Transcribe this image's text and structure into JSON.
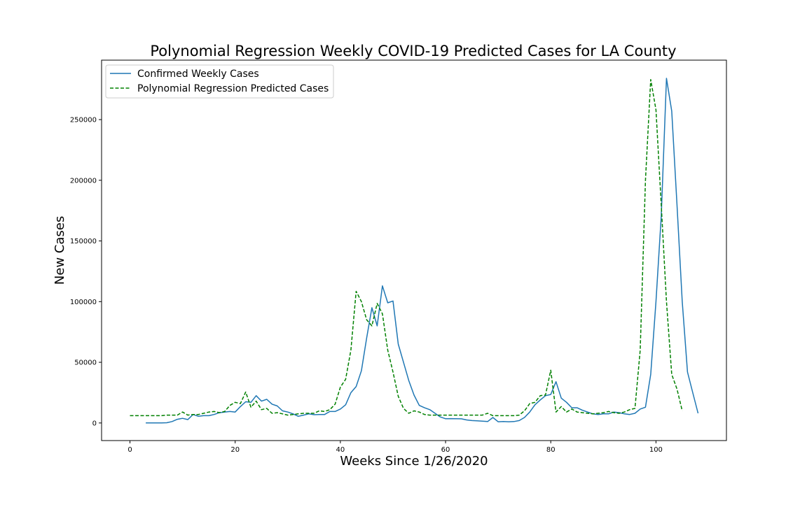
{
  "chart_data": {
    "type": "line",
    "title": "Polynomial Regression Weekly COVID-19 Predicted Cases for LA County",
    "xlabel": "Weeks Since 1/26/2020",
    "ylabel": "New Cases",
    "xlim": [
      -5.4,
      113.4
    ],
    "ylim": [
      -14500,
      299000
    ],
    "xticks": [
      0,
      20,
      40,
      60,
      80,
      100
    ],
    "xtick_labels": [
      "0",
      "20",
      "40",
      "60",
      "80",
      "100"
    ],
    "yticks": [
      0,
      50000,
      100000,
      150000,
      200000,
      250000
    ],
    "ytick_labels": [
      "0",
      "50000",
      "100000",
      "150000",
      "200000",
      "250000"
    ],
    "grid": false,
    "legend_position": "top-left",
    "series": [
      {
        "name": "Confirmed Weekly Cases",
        "color": "#1f77b4",
        "style": "solid",
        "x": [
          3,
          4,
          5,
          6,
          7,
          8,
          9,
          10,
          11,
          12,
          13,
          14,
          15,
          16,
          17,
          18,
          19,
          20,
          21,
          22,
          23,
          24,
          25,
          26,
          27,
          28,
          29,
          30,
          31,
          32,
          33,
          34,
          35,
          36,
          37,
          38,
          39,
          40,
          41,
          42,
          43,
          44,
          45,
          46,
          47,
          48,
          49,
          50,
          51,
          52,
          53,
          54,
          55,
          56,
          57,
          58,
          59,
          60,
          61,
          62,
          63,
          64,
          65,
          66,
          67,
          68,
          69,
          70,
          71,
          72,
          73,
          74,
          75,
          76,
          77,
          78,
          79,
          80,
          81,
          82,
          83,
          84,
          85,
          86,
          87,
          88,
          89,
          90,
          91,
          92,
          93,
          94,
          95,
          96,
          97,
          98,
          99,
          100,
          101,
          102,
          103,
          104,
          105,
          106,
          107,
          108
        ],
        "y": [
          0,
          0,
          0,
          0,
          200,
          1200,
          3000,
          3800,
          2800,
          7000,
          5500,
          6000,
          6000,
          7000,
          8500,
          9000,
          9500,
          9000,
          13500,
          17500,
          17000,
          22500,
          18000,
          19500,
          15500,
          14000,
          10000,
          9000,
          7500,
          5500,
          6500,
          7500,
          6800,
          7000,
          7000,
          9500,
          9500,
          11500,
          15000,
          25000,
          30000,
          43000,
          70000,
          95000,
          80000,
          113000,
          99000,
          100500,
          65000,
          50000,
          35000,
          23000,
          14500,
          12500,
          11000,
          8000,
          5000,
          3500,
          3600,
          3500,
          3400,
          2500,
          2000,
          1800,
          1500,
          1200,
          4500,
          1000,
          1200,
          1000,
          1200,
          2000,
          4500,
          9000,
          15000,
          19000,
          22500,
          23500,
          34000,
          20500,
          17000,
          12500,
          12500,
          10500,
          9000,
          7500,
          7000,
          7500,
          7500,
          9000,
          8500,
          7500,
          7000,
          8000,
          11500,
          13000,
          40000,
          100000,
          170000,
          284000,
          257000,
          180000,
          100000,
          42000,
          25000,
          8000
        ]
      },
      {
        "name": "Polynomial Regression Predicted Cases",
        "color": "#008000",
        "style": "dashed",
        "x": [
          0,
          1,
          2,
          3,
          4,
          5,
          6,
          7,
          8,
          9,
          10,
          11,
          12,
          13,
          14,
          15,
          16,
          17,
          18,
          19,
          20,
          21,
          22,
          23,
          24,
          25,
          26,
          27,
          28,
          29,
          30,
          31,
          32,
          33,
          34,
          35,
          36,
          37,
          38,
          39,
          40,
          41,
          42,
          43,
          44,
          45,
          46,
          47,
          48,
          49,
          50,
          51,
          52,
          53,
          54,
          55,
          56,
          57,
          58,
          59,
          60,
          61,
          62,
          63,
          64,
          65,
          66,
          67,
          68,
          69,
          70,
          71,
          72,
          73,
          74,
          75,
          76,
          77,
          78,
          79,
          80,
          81,
          82,
          83,
          84,
          85,
          86,
          87,
          88,
          89,
          90,
          91,
          92,
          93,
          94,
          95,
          96,
          97,
          98,
          99,
          100,
          101,
          102,
          103,
          104,
          105
        ],
        "y": [
          6000,
          6000,
          6000,
          6000,
          6000,
          6000,
          6000,
          6500,
          6500,
          6500,
          9000,
          6500,
          7000,
          7000,
          8000,
          9000,
          9500,
          8500,
          9500,
          14500,
          17000,
          16000,
          25500,
          13000,
          18000,
          11000,
          12000,
          8000,
          8500,
          7500,
          6500,
          7000,
          7500,
          8000,
          8000,
          8000,
          10000,
          9500,
          11000,
          15500,
          29500,
          36000,
          60000,
          108500,
          100000,
          85000,
          80000,
          98500,
          90000,
          60000,
          42000,
          22000,
          12000,
          8000,
          10000,
          9000,
          7000,
          6500,
          6500,
          6500,
          6500,
          6500,
          6500,
          6500,
          6500,
          6500,
          6500,
          6500,
          8000,
          6000,
          6000,
          6000,
          6000,
          6000,
          6500,
          10000,
          16000,
          17000,
          22500,
          23000,
          43500,
          9000,
          13500,
          9000,
          11500,
          9000,
          8500,
          8000,
          7500,
          8000,
          8500,
          9500,
          8500,
          8000,
          9000,
          11000,
          12000,
          60000,
          200000,
          283000,
          258000,
          180000,
          100000,
          40000,
          28000,
          10000
        ]
      }
    ]
  }
}
